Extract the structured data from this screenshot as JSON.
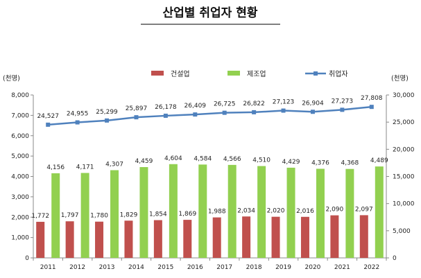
{
  "chart_data": {
    "type": "bar",
    "title": "산업별 취업자 현황",
    "categories": [
      "2011",
      "2012",
      "2013",
      "2014",
      "2015",
      "2016",
      "2017",
      "2018",
      "2019",
      "2020",
      "2021",
      "2022"
    ],
    "series": [
      {
        "name": "건설업",
        "type": "bar",
        "axis": "left",
        "color": "#c0504d",
        "values": [
          1772,
          1797,
          1780,
          1829,
          1854,
          1869,
          1988,
          2034,
          2020,
          2016,
          2090,
          2097
        ],
        "labels": [
          "1,772",
          "1,797",
          "1,780",
          "1,829",
          "1,854",
          "1,869",
          "1,988",
          "2,034",
          "2,020",
          "2,016",
          "2,090",
          "2,097"
        ]
      },
      {
        "name": "제조업",
        "type": "bar",
        "axis": "left",
        "color": "#92d050",
        "values": [
          4156,
          4171,
          4307,
          4459,
          4604,
          4584,
          4566,
          4510,
          4429,
          4376,
          4368,
          4489
        ],
        "labels": [
          "4,156",
          "4,171",
          "4,307",
          "4,459",
          "4,604",
          "4,584",
          "4,566",
          "4,510",
          "4,429",
          "4,376",
          "4,368",
          "4,489"
        ]
      },
      {
        "name": "취업자",
        "type": "line",
        "axis": "right",
        "color": "#4f81bd",
        "values": [
          24527,
          24955,
          25299,
          25897,
          26178,
          26409,
          26725,
          26822,
          27123,
          26904,
          27273,
          27808
        ],
        "labels": [
          "24,527",
          "24,955",
          "25,299",
          "25,897",
          "26,178",
          "26,409",
          "26,725",
          "26,822",
          "27,123",
          "26,904",
          "27,273",
          "27,808"
        ]
      }
    ],
    "y_left": {
      "unit": "(천명)",
      "range": [
        0,
        8000
      ],
      "ticks": [
        "0",
        "1,000",
        "2,000",
        "3,000",
        "4,000",
        "5,000",
        "6,000",
        "7,000",
        "8,000"
      ]
    },
    "y_right": {
      "unit": "(천명)",
      "range": [
        0,
        30000
      ],
      "ticks": [
        "0",
        "5,000",
        "10,000",
        "15,000",
        "20,000",
        "25,000",
        "30,000"
      ]
    },
    "legend_position": "top",
    "grid": false
  }
}
